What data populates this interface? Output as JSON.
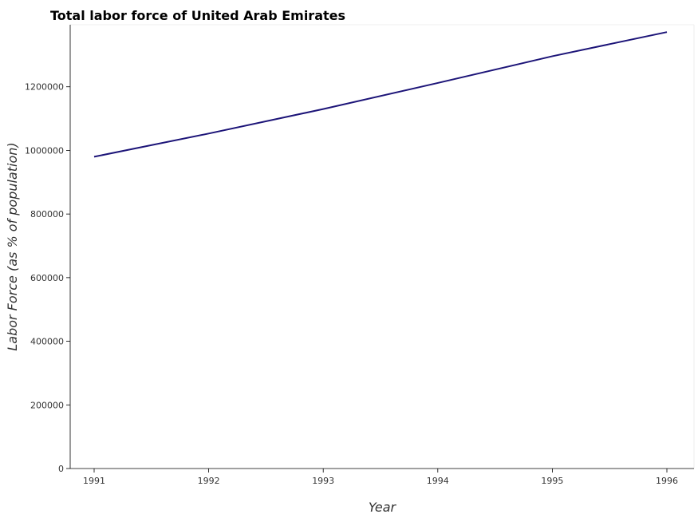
{
  "chart_data": {
    "type": "line",
    "title": "Total labor force of United Arab Emirates",
    "xlabel": "Year",
    "ylabel": "Labor Force (as % of population)",
    "categories": [
      "1991",
      "1992",
      "1993",
      "1994",
      "1995",
      "1996"
    ],
    "series": [
      {
        "values": [
          980000,
          1053000,
          1130000,
          1212000,
          1296000,
          1372000
        ]
      }
    ],
    "ylim": [
      0,
      1395000
    ],
    "yticks": [
      0,
      200000,
      400000,
      600000,
      800000,
      1000000,
      1200000
    ],
    "ytick_labels": [
      "0",
      "200000",
      "400000",
      "600000",
      "800000",
      "1000000",
      "1200000"
    ],
    "grid": false,
    "line_color": "#1c1478"
  }
}
